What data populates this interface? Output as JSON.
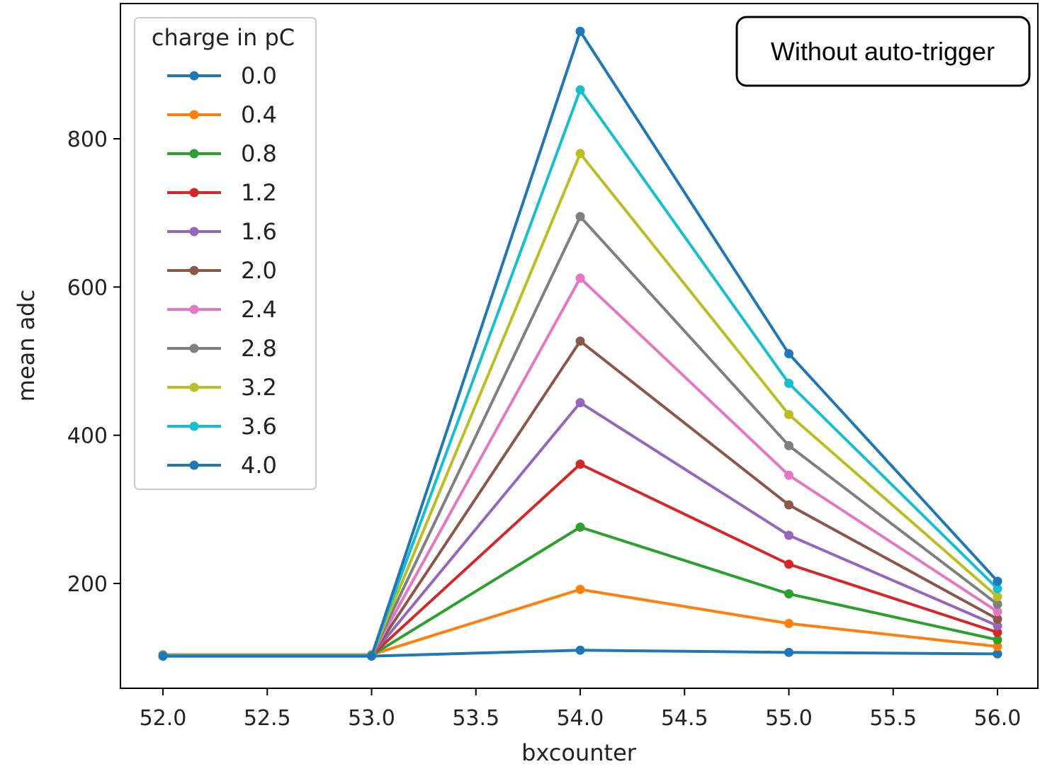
{
  "chart_data": {
    "type": "line",
    "xlabel": "bxcounter",
    "ylabel": "mean adc",
    "xlim": [
      51.8,
      56.2
    ],
    "ylim": [
      55,
      970
    ],
    "x_ticks": [
      "52.0",
      "52.5",
      "53.0",
      "53.5",
      "54.0",
      "54.5",
      "55.0",
      "55.5",
      "56.0"
    ],
    "y_ticks": [
      "200",
      "400",
      "600",
      "800"
    ],
    "x_tick_values": [
      52.0,
      52.5,
      53.0,
      53.5,
      54.0,
      54.5,
      55.0,
      55.5,
      56.0
    ],
    "y_tick_values": [
      200,
      400,
      600,
      800
    ],
    "grid": false,
    "legend": {
      "title": "charge in pC",
      "placement": "top-left"
    },
    "annotation": "Without auto-trigger",
    "x": [
      52,
      53,
      54,
      55,
      56
    ],
    "series": [
      {
        "name": "0.0",
        "color": "#1f77b4",
        "values": [
          102,
          102,
          110,
          107,
          105
        ]
      },
      {
        "name": "0.4",
        "color": "#ff7f0e",
        "values": [
          104,
          104,
          192,
          146,
          115
        ]
      },
      {
        "name": "0.8",
        "color": "#2ca02c",
        "values": [
          103,
          103,
          276,
          186,
          124
        ]
      },
      {
        "name": "1.2",
        "color": "#d62728",
        "values": [
          103,
          103,
          361,
          226,
          134
        ]
      },
      {
        "name": "1.6",
        "color": "#9467bd",
        "values": [
          103,
          103,
          444,
          265,
          143
        ]
      },
      {
        "name": "2.0",
        "color": "#8c564b",
        "values": [
          103,
          103,
          527,
          306,
          152
        ]
      },
      {
        "name": "2.4",
        "color": "#e377c2",
        "values": [
          103,
          103,
          612,
          346,
          162
        ]
      },
      {
        "name": "2.8",
        "color": "#7f7f7f",
        "values": [
          103,
          103,
          695,
          386,
          172
        ]
      },
      {
        "name": "3.2",
        "color": "#bcbd22",
        "values": [
          103,
          103,
          780,
          428,
          182
        ]
      },
      {
        "name": "3.6",
        "color": "#17becf",
        "values": [
          103,
          103,
          866,
          470,
          193
        ]
      },
      {
        "name": "4.0",
        "color": "#1f77b4",
        "values": [
          102,
          102,
          945,
          510,
          203
        ]
      }
    ]
  }
}
